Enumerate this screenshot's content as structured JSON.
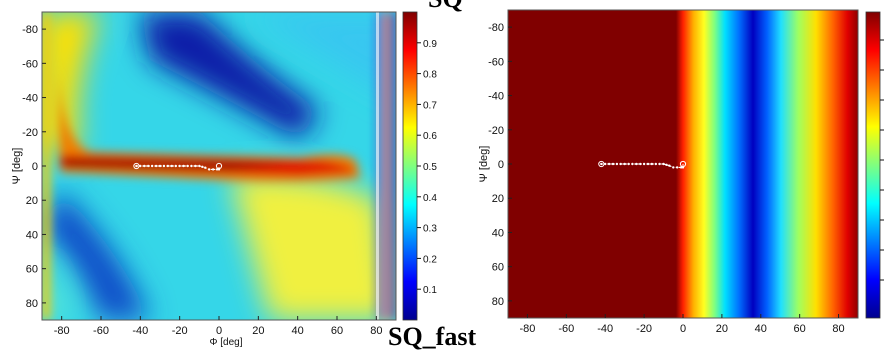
{
  "titles": {
    "top_fragment": "SQ",
    "bottom": "SQ_fast"
  },
  "chart_data": [
    {
      "type": "heatmap",
      "colormap": "jet",
      "ylabel": "Ψ [deg]",
      "xlabel": "Φ [deg]",
      "x_ticks": [
        -80,
        -60,
        -40,
        -20,
        0,
        20,
        40,
        60,
        80
      ],
      "y_ticks": [
        -80,
        -60,
        -40,
        -20,
        0,
        20,
        40,
        60,
        80
      ],
      "xlim": [
        -90,
        90
      ],
      "ylim": [
        -90,
        90
      ],
      "y_reversed": true,
      "colorbar": {
        "range": [
          0,
          1
        ],
        "ticks": [
          0.1,
          0.2,
          0.3,
          0.4,
          0.5,
          0.6,
          0.7,
          0.8,
          0.9
        ]
      },
      "path": {
        "description": "white dotted trajectory",
        "x": [
          -42,
          -38,
          -34,
          -30,
          -26,
          -22,
          -18,
          -14,
          -10,
          -7,
          -5,
          -3,
          -1,
          0,
          0
        ],
        "y": [
          0,
          0,
          0,
          0,
          0,
          0,
          0,
          0,
          0,
          1,
          2,
          2,
          2,
          2,
          0
        ]
      }
    },
    {
      "type": "heatmap",
      "colormap": "jet",
      "ylabel": "Ψ [deg]",
      "x_ticks": [
        -80,
        -60,
        -40,
        -20,
        0,
        20,
        40,
        60,
        80
      ],
      "y_ticks": [
        -80,
        -60,
        -40,
        -20,
        0,
        20,
        40,
        60,
        80
      ],
      "xlim": [
        -90,
        90
      ],
      "ylim": [
        -90,
        90
      ],
      "y_reversed": true,
      "colorbar": {
        "range": [
          0,
          1
        ],
        "ticks": []
      },
      "profile_note": "value depends on Φ only: 1 for Φ<0, decreasing to min near Φ≈45, rising to 1 near Φ≈90",
      "path": {
        "description": "white dotted trajectory",
        "x": [
          -42,
          -38,
          -34,
          -30,
          -26,
          -22,
          -18,
          -14,
          -10,
          -7,
          -5,
          -3,
          -1,
          0,
          0
        ],
        "y": [
          0,
          0,
          0,
          0,
          0,
          0,
          0,
          0,
          0,
          1,
          2,
          2,
          2,
          2,
          0
        ]
      }
    }
  ]
}
